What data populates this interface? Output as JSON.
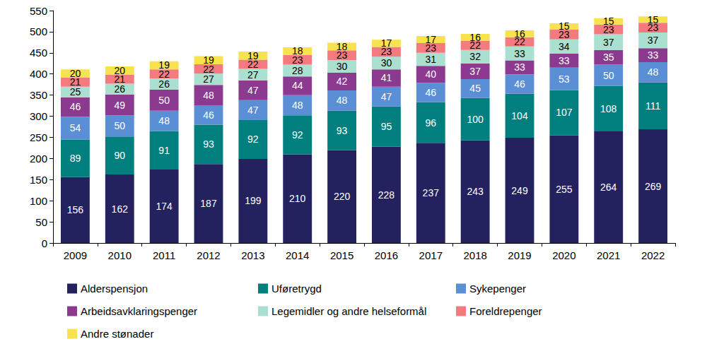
{
  "chart_data": {
    "type": "bar",
    "stacked": true,
    "data_labels": true,
    "grid": false,
    "legend": "bottom",
    "categories": [
      "2009",
      "2010",
      "2011",
      "2012",
      "2013",
      "2014",
      "2015",
      "2016",
      "2017",
      "2018",
      "2019",
      "2020",
      "2021",
      "2022"
    ],
    "ylim": [
      0,
      550
    ],
    "yticks": [
      0,
      50,
      100,
      150,
      200,
      250,
      300,
      350,
      400,
      450,
      500,
      550
    ],
    "series": [
      {
        "name": "Alderspensjon",
        "color": "#24215f",
        "values": [
          156,
          162,
          174,
          187,
          199,
          210,
          220,
          228,
          237,
          243,
          249,
          255,
          264,
          269
        ]
      },
      {
        "name": "Uføretrygd",
        "color": "#007f7f",
        "values": [
          89,
          90,
          91,
          93,
          92,
          92,
          93,
          95,
          96,
          100,
          104,
          107,
          108,
          111
        ]
      },
      {
        "name": "Sykepenger",
        "color": "#5b8fd5",
        "values": [
          54,
          50,
          48,
          46,
          47,
          48,
          48,
          47,
          46,
          45,
          46,
          53,
          50,
          48
        ]
      },
      {
        "name": "Arbeidsavklaringspenger",
        "color": "#8b3a8f",
        "values": [
          46,
          49,
          50,
          48,
          47,
          44,
          42,
          41,
          40,
          37,
          33,
          33,
          35,
          33
        ]
      },
      {
        "name": "Legemidler og andre helseformål",
        "color": "#a9e0cf",
        "values": [
          25,
          26,
          26,
          27,
          27,
          28,
          30,
          30,
          31,
          32,
          33,
          34,
          37,
          37
        ]
      },
      {
        "name": "Foreldrepenger",
        "color": "#f47a80",
        "values": [
          21,
          21,
          22,
          22,
          22,
          23,
          23,
          23,
          23,
          22,
          22,
          23,
          23,
          23
        ]
      },
      {
        "name": "Andre stønader",
        "color": "#f8e24e",
        "values": [
          20,
          20,
          19,
          19,
          19,
          18,
          18,
          17,
          17,
          16,
          16,
          15,
          15,
          15
        ]
      }
    ]
  }
}
